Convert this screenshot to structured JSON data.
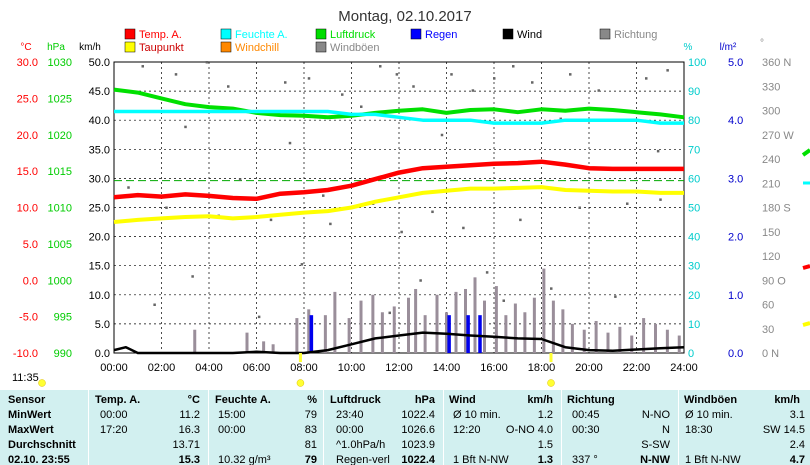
{
  "chart_data": {
    "type": "line",
    "title": "Montag, 02.10.2017",
    "x_ticks": [
      "00:00",
      "02:00",
      "04:00",
      "06:00",
      "08:00",
      "10:00",
      "12:00",
      "14:00",
      "16:00",
      "18:00",
      "20:00",
      "22:00",
      "24:00"
    ],
    "legend": [
      {
        "name": "Temp. A.",
        "color": "#ff0000"
      },
      {
        "name": "Feuchte A.",
        "color": "#00ffff"
      },
      {
        "name": "Luftdruck",
        "color": "#00dd00"
      },
      {
        "name": "Regen",
        "color": "#0000ff"
      },
      {
        "name": "Wind",
        "color": "#000000"
      },
      {
        "name": "Richtung",
        "color": "#888888"
      },
      {
        "name": "Taupunkt",
        "color": "#ffff00"
      },
      {
        "name": "Windchill",
        "color": "#ff8800"
      },
      {
        "name": "Windböen",
        "color": "#888888"
      }
    ],
    "axes": {
      "temp": {
        "label": "°C",
        "color": "#ff0000",
        "ticks": [
          "30.0",
          "25.0",
          "20.0",
          "15.0",
          "10.0",
          "5.0",
          "0.0",
          "-5.0",
          "-10.0"
        ],
        "range": [
          -10,
          30
        ]
      },
      "pressure": {
        "label": "hPa",
        "color": "#00cc00",
        "ticks": [
          "1030",
          "1025",
          "1020",
          "1015",
          "1010",
          "1005",
          "1000",
          "995",
          "990"
        ],
        "range": [
          990,
          1030
        ]
      },
      "wind": {
        "label": "km/h",
        "color": "#000000",
        "ticks": [
          "50.0",
          "45.0",
          "40.0",
          "35.0",
          "30.0",
          "25.0",
          "20.0",
          "15.0",
          "10.0",
          "5.0",
          "0.0"
        ],
        "range": [
          0,
          50
        ]
      },
      "humidity": {
        "label": "%",
        "color": "#00cccc",
        "ticks": [
          "100",
          "90",
          "80",
          "70",
          "60",
          "50",
          "40",
          "30",
          "20",
          "10",
          "0"
        ],
        "range": [
          0,
          100
        ]
      },
      "rain": {
        "label": "l/m²",
        "color": "#0000cc",
        "ticks": [
          "5.0",
          "4.0",
          "3.0",
          "2.0",
          "1.0",
          "0.0"
        ],
        "range": [
          0,
          5
        ]
      },
      "direction": {
        "label": "°",
        "color": "#888888",
        "ticks": [
          "360 N",
          "330",
          "300",
          "270 W",
          "240",
          "210",
          "180 S",
          "150",
          "120",
          "90 O",
          "60",
          "30",
          "0 N"
        ],
        "range": [
          0,
          360
        ]
      }
    },
    "series": [
      {
        "name": "Luftdruck",
        "axis": "pressure",
        "x": [
          0,
          1,
          2,
          3,
          4,
          5,
          6,
          7,
          8,
          9,
          10,
          11,
          12,
          13,
          14,
          15,
          16,
          17,
          18,
          19,
          20,
          21,
          22,
          23,
          24
        ],
        "values": [
          1026.2,
          1025.8,
          1025.0,
          1024.2,
          1023.8,
          1023.6,
          1023.0,
          1022.7,
          1022.6,
          1022.4,
          1022.6,
          1023.0,
          1023.3,
          1023.5,
          1023.0,
          1023.4,
          1023.5,
          1023.1,
          1023.5,
          1023.3,
          1023.6,
          1023.4,
          1023.1,
          1022.8,
          1022.4
        ]
      },
      {
        "name": "Feuchte A.",
        "axis": "humidity",
        "x": [
          0,
          1,
          2,
          3,
          4,
          5,
          6,
          7,
          8,
          9,
          10,
          11,
          12,
          13,
          14,
          15,
          16,
          17,
          18,
          19,
          20,
          21,
          22,
          23,
          24
        ],
        "values": [
          83,
          83,
          83,
          83,
          83,
          83,
          83,
          83,
          83,
          83,
          82,
          82,
          81,
          80,
          80,
          80,
          79,
          79,
          79,
          80,
          80,
          80,
          80,
          79,
          79
        ]
      },
      {
        "name": "Temp. A.",
        "axis": "temp",
        "x": [
          0,
          1,
          2,
          3,
          4,
          5,
          6,
          7,
          8,
          9,
          10,
          11,
          12,
          13,
          14,
          15,
          16,
          17,
          18,
          19,
          20,
          21,
          22,
          23,
          24
        ],
        "values": [
          11.4,
          11.7,
          11.5,
          11.8,
          11.6,
          11.3,
          11.2,
          11.9,
          12.1,
          12.4,
          13.0,
          13.9,
          14.8,
          15.4,
          15.6,
          15.8,
          16.0,
          16.1,
          16.3,
          15.9,
          15.4,
          15.3,
          15.3,
          15.3,
          15.3
        ]
      },
      {
        "name": "Taupunkt",
        "axis": "temp",
        "x": [
          0,
          1,
          2,
          3,
          4,
          5,
          6,
          7,
          8,
          9,
          10,
          11,
          12,
          13,
          14,
          15,
          16,
          17,
          18,
          19,
          20,
          21,
          22,
          23,
          24
        ],
        "values": [
          8.0,
          8.3,
          8.5,
          8.7,
          8.8,
          8.5,
          8.7,
          9.0,
          9.3,
          9.5,
          10.0,
          10.8,
          11.4,
          12.0,
          12.3,
          12.6,
          12.6,
          12.7,
          12.8,
          12.4,
          12.3,
          12.2,
          12.2,
          12.0,
          12.0
        ]
      },
      {
        "name": "Wind",
        "axis": "wind",
        "x": [
          0,
          0.5,
          1,
          2,
          3,
          4,
          5,
          6,
          7,
          8,
          9,
          10,
          11,
          12,
          13,
          14,
          15,
          16,
          17,
          18,
          19,
          20,
          21,
          22,
          23,
          24
        ],
        "values": [
          0.5,
          1.0,
          0,
          0,
          0,
          0,
          0,
          0.2,
          0,
          0,
          0.5,
          1.5,
          2.5,
          3.0,
          3.5,
          3.3,
          3.0,
          2.8,
          2.5,
          2.4,
          1.0,
          0.5,
          0.4,
          0.6,
          0.8,
          1.0
        ]
      }
    ],
    "reference_lines": [
      {
        "axis": "temp",
        "value": 13.7,
        "color": "#00aa00",
        "style": "dashed"
      }
    ],
    "rain_bars": [
      {
        "x": 8.3,
        "value": 0.65
      },
      {
        "x": 14.1,
        "value": 0.65
      },
      {
        "x": 14.9,
        "value": 0.65
      },
      {
        "x": 15.4,
        "value": 0.65
      }
    ],
    "gust_bars": [
      {
        "x": 3.4,
        "value": 4.0
      },
      {
        "x": 5.6,
        "value": 3.5
      },
      {
        "x": 6.3,
        "value": 2.0
      },
      {
        "x": 6.7,
        "value": 1.5
      },
      {
        "x": 7.7,
        "value": 6.0
      },
      {
        "x": 8.2,
        "value": 7.5
      },
      {
        "x": 8.9,
        "value": 6.5
      },
      {
        "x": 9.3,
        "value": 10.5
      },
      {
        "x": 9.9,
        "value": 6.0
      },
      {
        "x": 10.4,
        "value": 9.0
      },
      {
        "x": 10.9,
        "value": 10.0
      },
      {
        "x": 11.3,
        "value": 7.0
      },
      {
        "x": 11.8,
        "value": 8.0
      },
      {
        "x": 12.4,
        "value": 9.5
      },
      {
        "x": 12.7,
        "value": 11.0
      },
      {
        "x": 13.1,
        "value": 6.5
      },
      {
        "x": 13.6,
        "value": 10.0
      },
      {
        "x": 14.0,
        "value": 7.0
      },
      {
        "x": 14.4,
        "value": 10.5
      },
      {
        "x": 14.8,
        "value": 11.0
      },
      {
        "x": 15.2,
        "value": 13.0
      },
      {
        "x": 15.6,
        "value": 9.0
      },
      {
        "x": 16.1,
        "value": 11.5
      },
      {
        "x": 16.5,
        "value": 6.5
      },
      {
        "x": 16.9,
        "value": 8.5
      },
      {
        "x": 17.3,
        "value": 7.0
      },
      {
        "x": 17.7,
        "value": 9.5
      },
      {
        "x": 18.1,
        "value": 14.5
      },
      {
        "x": 18.5,
        "value": 9.0
      },
      {
        "x": 18.9,
        "value": 7.5
      },
      {
        "x": 19.3,
        "value": 5.0
      },
      {
        "x": 19.8,
        "value": 4.0
      },
      {
        "x": 20.3,
        "value": 5.5
      },
      {
        "x": 20.8,
        "value": 3.5
      },
      {
        "x": 21.3,
        "value": 4.5
      },
      {
        "x": 21.8,
        "value": 3.0
      },
      {
        "x": 22.3,
        "value": 6.0
      },
      {
        "x": 22.8,
        "value": 5.0
      },
      {
        "x": 23.3,
        "value": 4.0
      },
      {
        "x": 23.8,
        "value": 3.0
      }
    ],
    "direction_points": [
      {
        "x": 1.2,
        "value": 355
      },
      {
        "x": 2.6,
        "value": 345
      },
      {
        "x": 3.9,
        "value": 360
      },
      {
        "x": 4.8,
        "value": 330
      },
      {
        "x": 7.2,
        "value": 335
      },
      {
        "x": 8.2,
        "value": 340
      },
      {
        "x": 9.6,
        "value": 320
      },
      {
        "x": 10.4,
        "value": 305
      },
      {
        "x": 11.2,
        "value": 355
      },
      {
        "x": 11.9,
        "value": 345
      },
      {
        "x": 12.6,
        "value": 330
      },
      {
        "x": 14.2,
        "value": 345
      },
      {
        "x": 15.1,
        "value": 325
      },
      {
        "x": 16.0,
        "value": 340
      },
      {
        "x": 16.8,
        "value": 355
      },
      {
        "x": 17.6,
        "value": 335
      },
      {
        "x": 19.2,
        "value": 345
      },
      {
        "x": 20.4,
        "value": 325
      },
      {
        "x": 22.4,
        "value": 340
      },
      {
        "x": 23.3,
        "value": 350
      },
      {
        "x": 2.2,
        "value": 180
      },
      {
        "x": 4.4,
        "value": 170
      },
      {
        "x": 6.6,
        "value": 165
      },
      {
        "x": 8.8,
        "value": 195
      },
      {
        "x": 10.9,
        "value": 185
      },
      {
        "x": 13.4,
        "value": 175
      },
      {
        "x": 0.6,
        "value": 205
      },
      {
        "x": 5.3,
        "value": 215
      },
      {
        "x": 9.1,
        "value": 160
      },
      {
        "x": 12.1,
        "value": 150
      },
      {
        "x": 14.7,
        "value": 155
      },
      {
        "x": 17.1,
        "value": 165
      },
      {
        "x": 19.6,
        "value": 180
      },
      {
        "x": 21.6,
        "value": 185
      },
      {
        "x": 23.0,
        "value": 190
      },
      {
        "x": 3.3,
        "value": 95
      },
      {
        "x": 7.9,
        "value": 110
      },
      {
        "x": 12.9,
        "value": 90
      },
      {
        "x": 15.7,
        "value": 100
      },
      {
        "x": 18.4,
        "value": 80
      },
      {
        "x": 1.7,
        "value": 60
      },
      {
        "x": 6.1,
        "value": 45
      },
      {
        "x": 11.6,
        "value": 50
      },
      {
        "x": 16.4,
        "value": 65
      },
      {
        "x": 21.1,
        "value": 70
      },
      {
        "x": 3.0,
        "value": 280
      },
      {
        "x": 7.4,
        "value": 260
      },
      {
        "x": 13.8,
        "value": 270
      },
      {
        "x": 18.8,
        "value": 290
      },
      {
        "x": 22.9,
        "value": 250
      }
    ],
    "time_markers": [
      {
        "label": "11:35",
        "x": -0.2
      },
      {
        "label": "",
        "x": 7.85
      },
      {
        "label": "",
        "x": 18.4
      }
    ]
  },
  "table": {
    "headers": {
      "sensor": "Sensor",
      "temp": "Temp. A.",
      "temp_unit": "°C",
      "hum": "Feuchte A.",
      "hum_unit": "%",
      "press": "Luftdruck",
      "press_unit": "hPa",
      "wind": "Wind",
      "wind_unit": "km/h",
      "dir": "Richtung",
      "gust": "Windböen",
      "gust_unit": "km/h"
    },
    "rows": [
      {
        "label": "MinWert",
        "temp_t": "00:00",
        "temp_v": "11.2",
        "hum_t": "15:00",
        "hum_v": "79",
        "press_t": "23:40",
        "press_v": "1022.4",
        "wind_t": "Ø 10 min.",
        "wind_v": "1.2",
        "dir_t": "00:45",
        "dir_v": "N-NO",
        "gust_t": "Ø 10 min.",
        "gust_v": "3.1"
      },
      {
        "label": "MaxWert",
        "temp_t": "17:20",
        "temp_v": "16.3",
        "hum_t": "00:00",
        "hum_v": "83",
        "press_t": "00:00",
        "press_v": "1026.6",
        "wind_t": "12:20",
        "wind_v": "O-NO 4.0",
        "dir_t": "00:30",
        "dir_v": "N",
        "gust_t": "18:30",
        "gust_v": "SW 14.5"
      },
      {
        "label": "Durchschnitt",
        "temp_t": "",
        "temp_v": "13.71",
        "hum_t": "",
        "hum_v": "81",
        "press_t": "^1.0hPa/h",
        "press_v": "1023.9",
        "wind_t": "",
        "wind_v": "1.5",
        "dir_t": "",
        "dir_v": "S-SW",
        "gust_t": "",
        "gust_v": "2.4"
      },
      {
        "label": "02.10. 23:55",
        "temp_t": "",
        "temp_v": "15.3",
        "hum_t": "10.32 g/m³",
        "hum_v": "79",
        "press_t": "Regen-verl",
        "press_v": "1022.4",
        "wind_t": "1 Bft N-NW",
        "wind_v": "1.3",
        "dir_t": "337 °",
        "dir_v": "N-NW",
        "gust_t": "1 Bft N-NW",
        "gust_v": "4.7"
      }
    ]
  }
}
